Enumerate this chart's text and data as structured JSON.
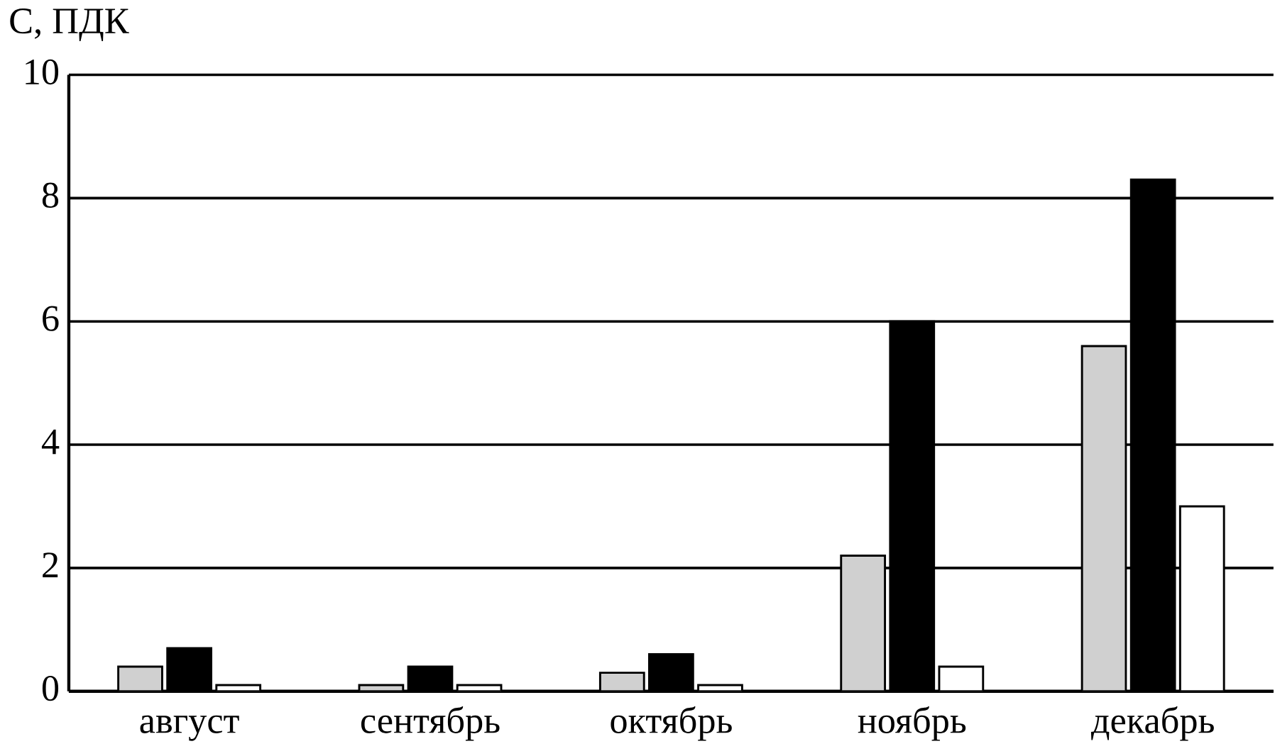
{
  "chart_data": {
    "type": "bar",
    "ylabel": "С, ПДК",
    "categories": [
      "август",
      "сентябрь",
      "октябрь",
      "ноябрь",
      "декабрь"
    ],
    "series": [
      {
        "color": "#d0d0d0",
        "values": [
          0.4,
          0.1,
          0.3,
          2.2,
          5.6
        ]
      },
      {
        "color": "#000000",
        "values": [
          0.7,
          0.4,
          0.6,
          6.0,
          8.3
        ]
      },
      {
        "color": "#ffffff",
        "values": [
          0.1,
          0.1,
          0.1,
          0.4,
          3.0
        ]
      }
    ],
    "ylim": [
      0,
      10
    ],
    "yticks": [
      0,
      2,
      4,
      6,
      8,
      10
    ],
    "grid": "y"
  }
}
